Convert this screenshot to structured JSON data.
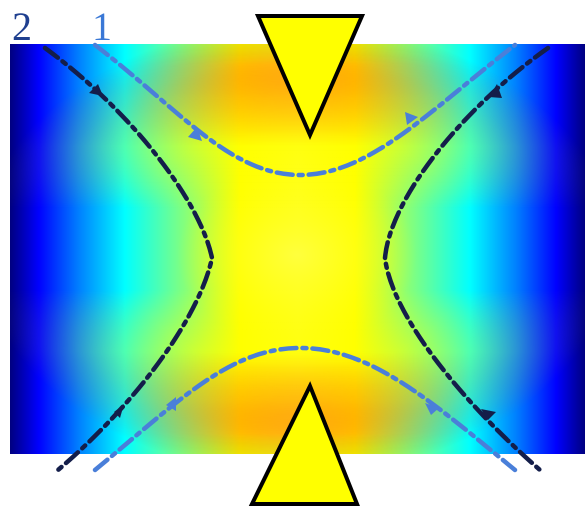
{
  "labels": {
    "curve_2": "2",
    "curve_1": "1"
  },
  "colors": {
    "background": "#ffffff",
    "curve_1": "#4a7fd9",
    "curve_2": "#141e4a",
    "label_2": "#1f3f8f",
    "label_1": "#3a78d6",
    "electrode_fill": "#ffff00",
    "electrode_stroke": "#000000",
    "colormap": "jet"
  },
  "elements": {
    "electrodes": [
      "top-electrode",
      "bottom-electrode"
    ],
    "curves": [
      "trajectory-1",
      "trajectory-2"
    ],
    "field": "potential-field-colormap"
  }
}
